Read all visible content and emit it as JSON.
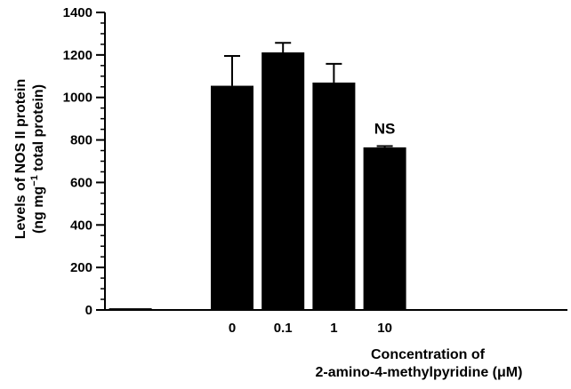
{
  "chart_data": {
    "type": "bar",
    "categories": [
      "",
      "",
      "0",
      "0.1",
      "1",
      "10"
    ],
    "values": [
      8,
      0,
      1055,
      1212,
      1070,
      765
    ],
    "errors": [
      0,
      0,
      140,
      45,
      88,
      6
    ],
    "annotations": [
      "",
      "",
      "",
      "",
      "",
      "NS"
    ],
    "ylabel": {
      "line1": "Levels of NOS II protein",
      "line2_pre": "(ng mg",
      "line2_sup": "−1",
      "line2_post": " total protein)"
    },
    "xlabel": {
      "line1": "Concentration of",
      "line2": "2-amino-4-methylpyridine (μM)"
    },
    "ylim": [
      0,
      1400
    ],
    "yticks": [
      0,
      200,
      400,
      600,
      800,
      1000,
      1200,
      1400
    ],
    "grid": false,
    "bar_color": "#000000",
    "axis_color": "#000000"
  }
}
